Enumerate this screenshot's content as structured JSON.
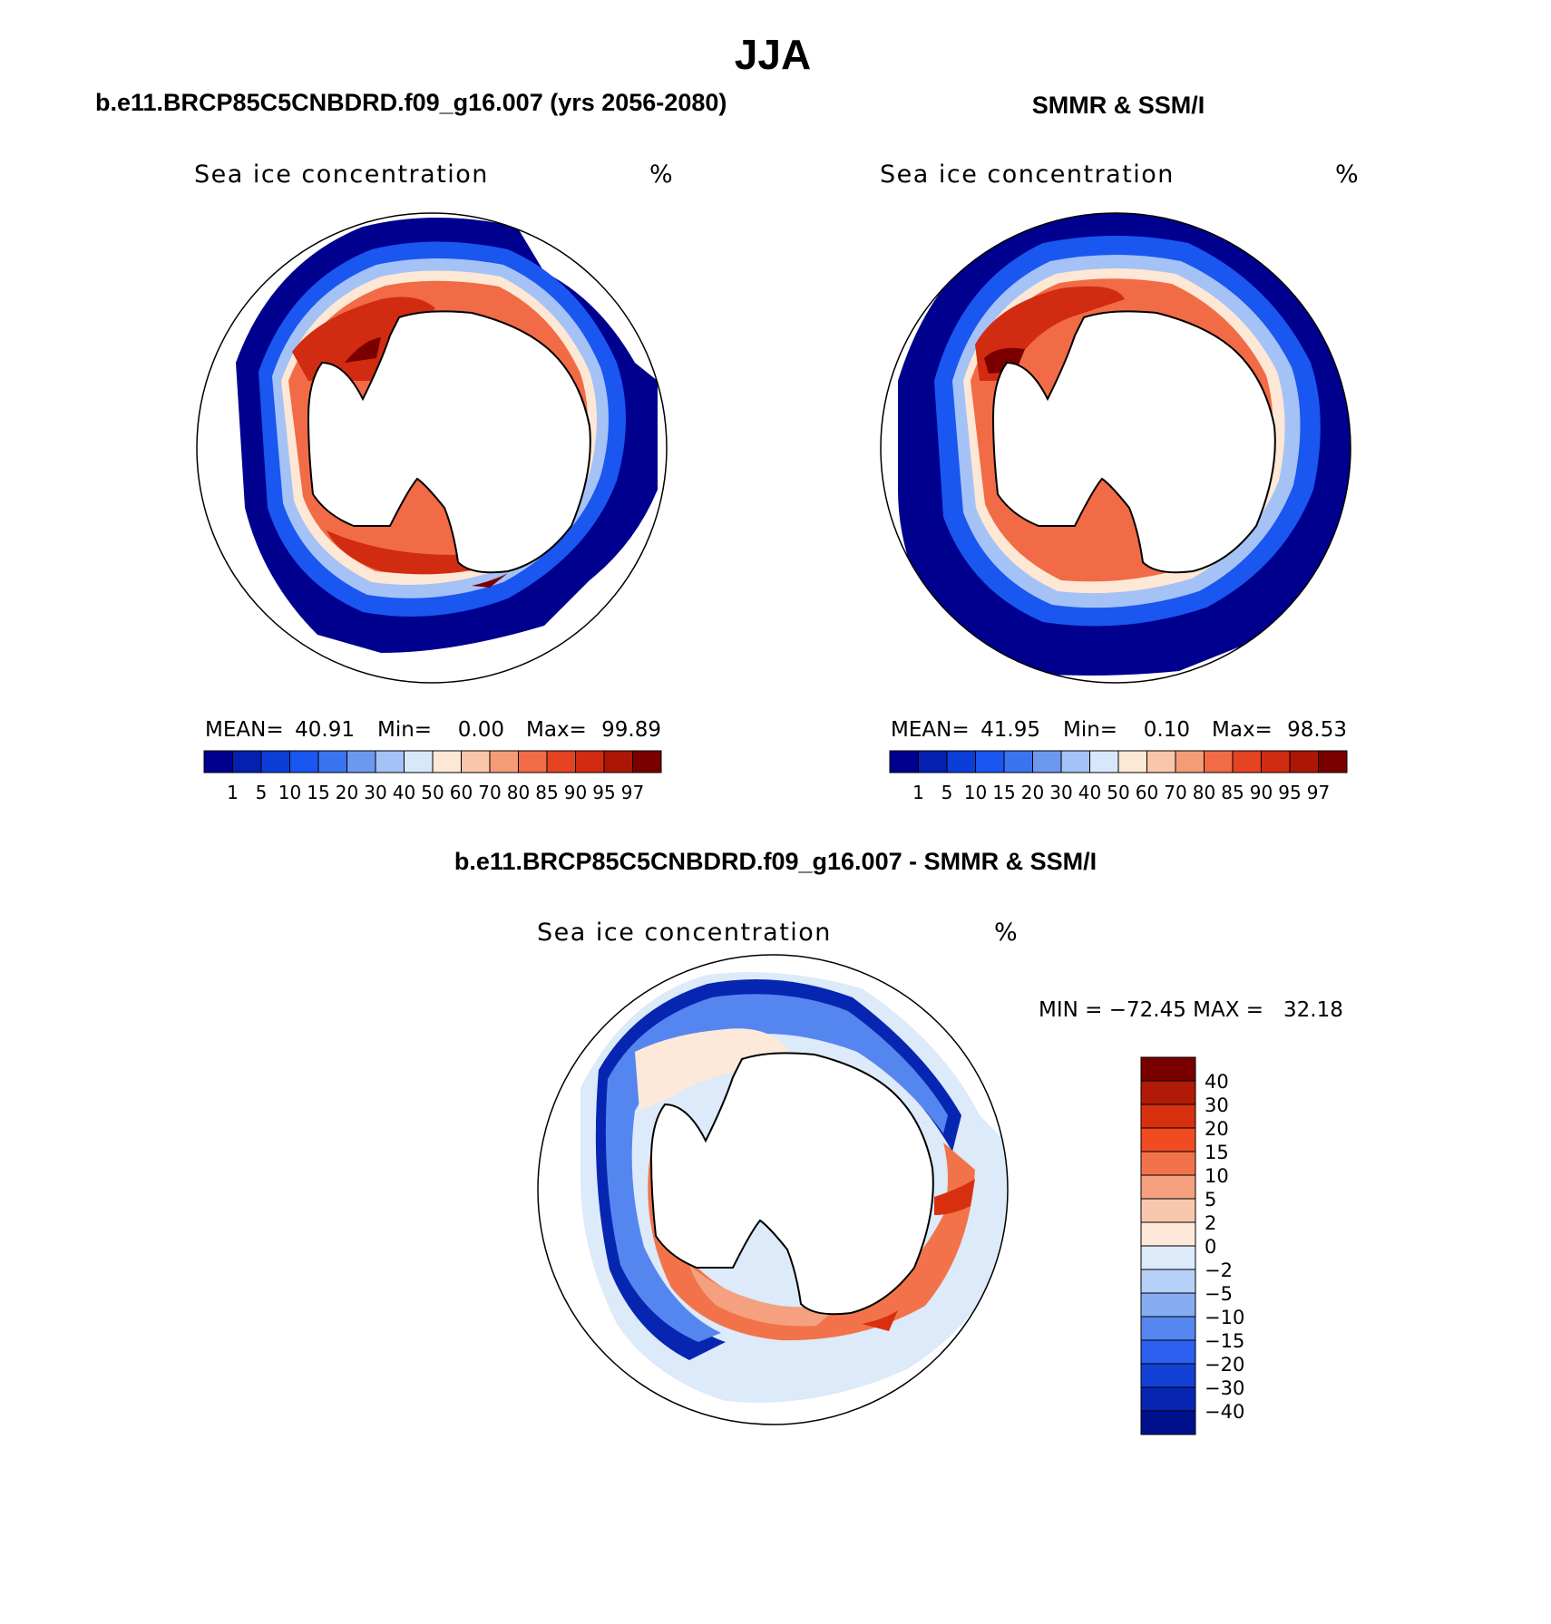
{
  "figure_title": "JJA",
  "chart_data": [
    {
      "type": "heatmap",
      "title": "b.e11.BRCP85C5CNBDRD.f09_g16.007 (yrs 2056-2080)",
      "variable": "Sea ice concentration",
      "units": "%",
      "projection": "south-polar stereographic",
      "stats": {
        "mean_label": "MEAN=",
        "mean": "40.91",
        "min_label": "Min=",
        "min": "0.00",
        "max_label": "Max=",
        "max": "99.89"
      },
      "colorbar": {
        "orientation": "horizontal",
        "levels": [
          "1",
          "5",
          "10",
          "15",
          "20",
          "30",
          "40",
          "50",
          "60",
          "70",
          "80",
          "85",
          "90",
          "95",
          "97"
        ],
        "colors": [
          "#00008f",
          "#0420b0",
          "#0a3ed6",
          "#1a56f0",
          "#3b74f0",
          "#6c98f0",
          "#a4c2f5",
          "#d8e8fb",
          "#fde7d5",
          "#f9c6aa",
          "#f49c77",
          "#f16b46",
          "#e54322",
          "#d12b11",
          "#ac1705",
          "#7a0000"
        ]
      }
    },
    {
      "type": "heatmap",
      "title": "SMMR & SSM/I",
      "variable": "Sea ice concentration",
      "units": "%",
      "projection": "south-polar stereographic",
      "stats": {
        "mean_label": "MEAN=",
        "mean": "41.95",
        "min_label": "Min=",
        "min": "0.10",
        "max_label": "Max=",
        "max": "98.53"
      },
      "colorbar": {
        "orientation": "horizontal",
        "levels": [
          "1",
          "5",
          "10",
          "15",
          "20",
          "30",
          "40",
          "50",
          "60",
          "70",
          "80",
          "85",
          "90",
          "95",
          "97"
        ],
        "colors": [
          "#00008f",
          "#0420b0",
          "#0a3ed6",
          "#1a56f0",
          "#3b74f0",
          "#6c98f0",
          "#a4c2f5",
          "#d8e8fb",
          "#fde7d5",
          "#f9c6aa",
          "#f49c77",
          "#f16b46",
          "#e54322",
          "#d12b11",
          "#ac1705",
          "#7a0000"
        ]
      }
    },
    {
      "type": "heatmap",
      "title": "b.e11.BRCP85C5CNBDRD.f09_g16.007 - SMMR & SSM/I",
      "variable": "Sea ice concentration",
      "units": "%",
      "projection": "south-polar stereographic",
      "stats_text": "MIN = −72.45 MAX =   32.18",
      "stats": {
        "min": "-72.45",
        "max": "32.18"
      },
      "colorbar": {
        "orientation": "vertical",
        "levels": [
          "40",
          "30",
          "20",
          "15",
          "10",
          "5",
          "2",
          "0",
          "−2",
          "−5",
          "−10",
          "−15",
          "−20",
          "−30",
          "−40"
        ],
        "colors": [
          "#7a0000",
          "#b01a06",
          "#d8300f",
          "#f04b21",
          "#f2734a",
          "#f5a07e",
          "#f8c7ad",
          "#fde9d9",
          "#dceaf9",
          "#b6d0f7",
          "#86acf2",
          "#5586ef",
          "#2a5ff0",
          "#1240d4",
          "#0626b2",
          "#00108c"
        ]
      }
    }
  ]
}
